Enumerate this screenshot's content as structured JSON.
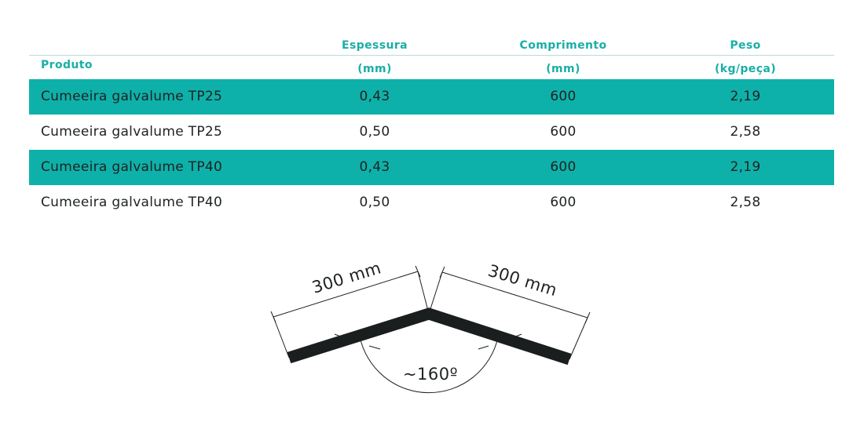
{
  "table": {
    "headers": {
      "produto": "Produto",
      "espessura": {
        "line1": "Espessura",
        "line2": "(mm)"
      },
      "comprimento": {
        "line1": "Comprimento",
        "line2": "(mm)"
      },
      "peso": {
        "line1": "Peso",
        "line2": "(kg/peça)"
      }
    },
    "rows": [
      {
        "produto": "Cumeeira galvalume TP25",
        "espessura": "0,43",
        "comprimento": "600",
        "peso": "2,19"
      },
      {
        "produto": "Cumeeira galvalume TP25",
        "espessura": "0,50",
        "comprimento": "600",
        "peso": "2,58"
      },
      {
        "produto": "Cumeeira galvalume TP40",
        "espessura": "0,43",
        "comprimento": "600",
        "peso": "2,19"
      },
      {
        "produto": "Cumeeira galvalume TP40",
        "espessura": "0,50",
        "comprimento": "600",
        "peso": "2,58"
      }
    ]
  },
  "diagram": {
    "left_length": "300 mm",
    "right_length": "300 mm",
    "angle": "~160º"
  },
  "colors": {
    "accent": "#0eb1a9",
    "header_text": "#1aaea6",
    "text": "#1e2222",
    "profile": "#1a1e1e"
  }
}
